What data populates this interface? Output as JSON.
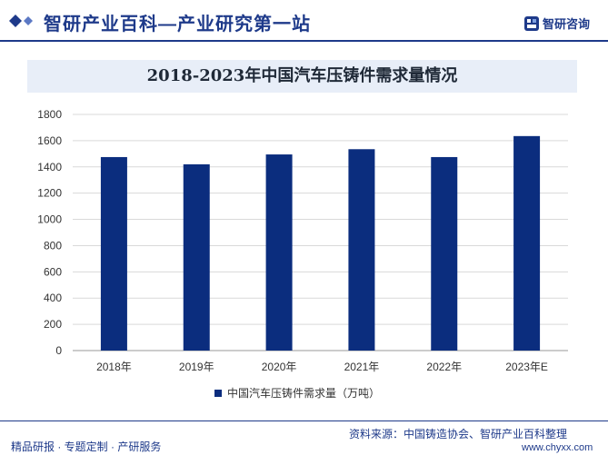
{
  "header": {
    "title": "智研产业百科—产业研究第一站",
    "logo_text": "智研咨询"
  },
  "footer": {
    "left_text": "精品研报 · 专题定制 · 产研服务",
    "source": "资料来源：中国铸造协会、智研产业百科整理",
    "url": "www.chyxx.com"
  },
  "colors": {
    "bar": "#0b2d7e",
    "brand": "#1e3a8a",
    "title_bg": "#e8eef8"
  },
  "chart_data": {
    "type": "bar",
    "title": "2018-2023年中国汽车压铸件需求量情况",
    "categories": [
      "2018年",
      "2019年",
      "2020年",
      "2021年",
      "2022年",
      "2023年E"
    ],
    "series": [
      {
        "name": "中国汽车压铸件需求量（万吨）",
        "values": [
          1475,
          1420,
          1495,
          1535,
          1475,
          1635
        ]
      }
    ],
    "ylim": [
      0,
      1800
    ],
    "yticks": [
      0,
      200,
      400,
      600,
      800,
      1000,
      1200,
      1400,
      1600,
      1800
    ],
    "xlabel": "",
    "ylabel": "",
    "grid": true,
    "legend": "bottom-center"
  }
}
